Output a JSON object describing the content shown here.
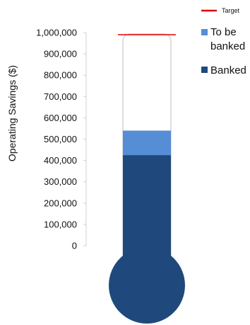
{
  "chart_data": {
    "type": "bar",
    "chart_style": "thermometer",
    "ylabel": "Operating Savings ($)",
    "ylim": [
      0,
      1000000
    ],
    "y_ticks": [
      "0",
      "100,000",
      "200,000",
      "300,000",
      "400,000",
      "500,000",
      "600,000",
      "700,000",
      "800,000",
      "900,000",
      "1,000,000"
    ],
    "series": [
      {
        "name": "Banked",
        "value": 425000,
        "color": "#1f497d"
      },
      {
        "name": "To be banked",
        "value": 115000,
        "color": "#558ed5"
      }
    ],
    "target": {
      "name": "Target",
      "value": 990000,
      "color": "#e00000"
    },
    "legend": {
      "position": "right",
      "target_label": "Target",
      "to_be_banked_label": [
        "To be",
        "banked"
      ],
      "banked_label": "Banked"
    },
    "grid": false
  }
}
